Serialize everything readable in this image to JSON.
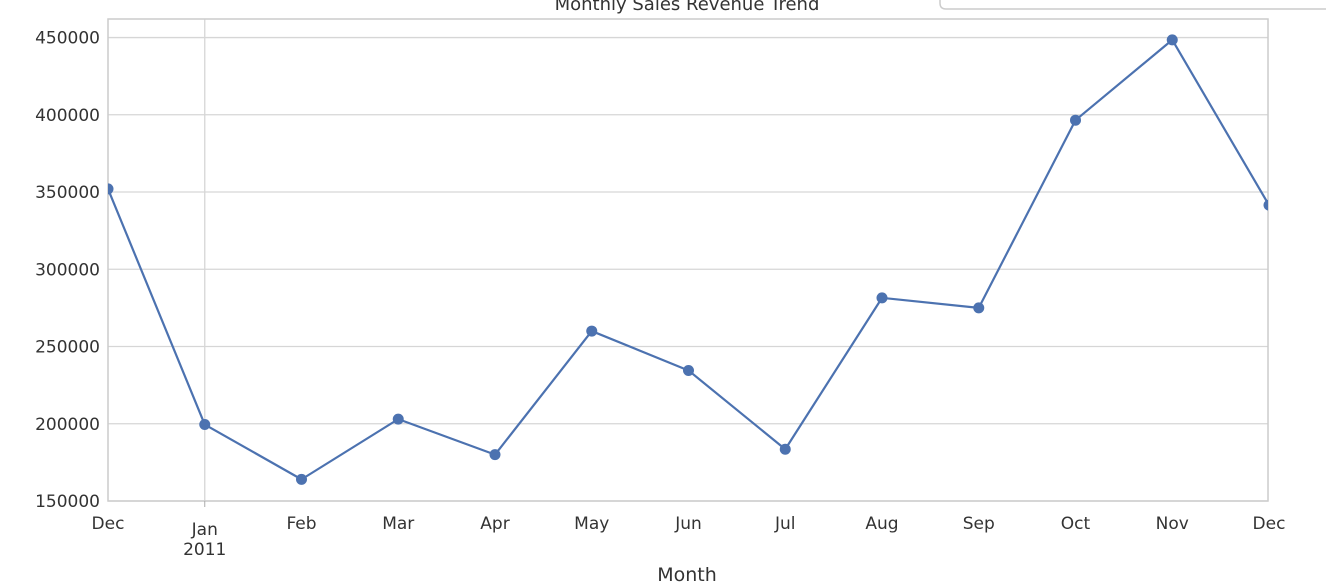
{
  "chart_data": {
    "type": "line",
    "title": "Monthly Sales Revenue Trend",
    "xlabel": "Month",
    "ylabel": "",
    "x": [
      "Dec",
      "Jan",
      "Feb",
      "Mar",
      "Apr",
      "May",
      "Jun",
      "Jul",
      "Aug",
      "Sep",
      "Oct",
      "Nov",
      "Dec"
    ],
    "x_sublabels": [
      "",
      "2011",
      "",
      "",
      "",
      "",
      "",
      "",
      "",
      "",
      "",
      "",
      ""
    ],
    "series": [
      {
        "values": [
          352000,
          199500,
          164000,
          203000,
          180000,
          260000,
          234500,
          183500,
          281500,
          275000,
          396500,
          448500,
          341500
        ]
      }
    ],
    "ylim": [
      150000,
      462000
    ],
    "yticks": [
      150000,
      200000,
      250000,
      300000,
      350000,
      400000,
      450000
    ],
    "ytick_labels": [
      "150000",
      "200000",
      "250000",
      "300000",
      "350000",
      "400000",
      "450000"
    ],
    "grid": "horizontal, with a vertical line at Jan 2011",
    "legend": "top-right",
    "line_color": "#4c72b0"
  }
}
